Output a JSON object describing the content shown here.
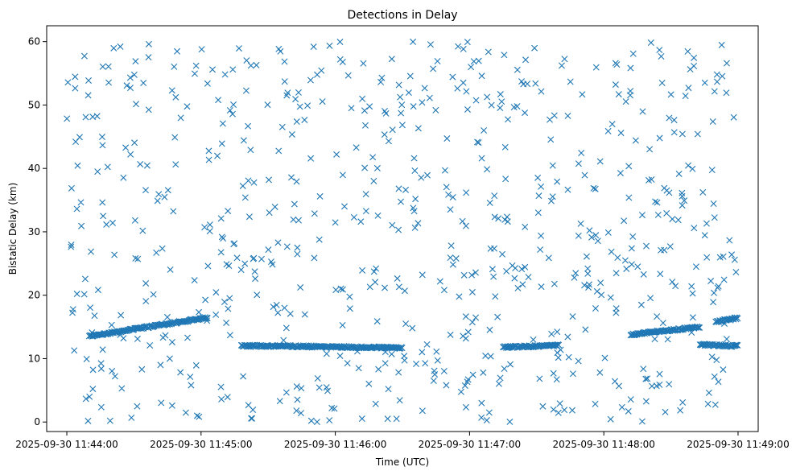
{
  "chart_data": {
    "type": "scatter",
    "title": "Detections in Delay",
    "xlabel": "Time (UTC)",
    "ylabel": "Bistatic Delay (km)",
    "marker": "x",
    "color": "#1f77b4",
    "x_start": "2025-09-30 11:44:00",
    "x_end": "2025-09-30 11:49:00",
    "xlim": [
      "2025-09-30 11:43:51",
      "2025-09-30 11:49:09"
    ],
    "ylim": [
      -1.5,
      62.5
    ],
    "x_ticks": [
      "2025-09-30 11:44:00",
      "2025-09-30 11:45:00",
      "2025-09-30 11:46:00",
      "2025-09-30 11:47:00",
      "2025-09-30 11:48:00",
      "2025-09-30 11:49:00"
    ],
    "y_ticks": [
      0,
      10,
      20,
      30,
      40,
      50,
      60
    ],
    "grid": false,
    "tracks": [
      {
        "t_start": "2025-09-30 11:44:10",
        "t_end": "2025-09-30 11:45:03",
        "y_start": 13.5,
        "y_end": 16.5
      },
      {
        "t_start": "2025-09-30 11:45:18",
        "t_end": "2025-09-30 11:45:30",
        "y_start": 12.0,
        "y_end": 12.0
      },
      {
        "t_start": "2025-09-30 11:45:30",
        "t_end": "2025-09-30 11:46:30",
        "y_start": 12.0,
        "y_end": 11.7
      },
      {
        "t_start": "2025-09-30 11:47:15",
        "t_end": "2025-09-30 11:47:40",
        "y_start": 11.8,
        "y_end": 12.1
      },
      {
        "t_start": "2025-09-30 11:48:12",
        "t_end": "2025-09-30 11:48:43",
        "y_start": 13.8,
        "y_end": 15.0
      },
      {
        "t_start": "2025-09-30 11:48:43",
        "t_end": "2025-09-30 11:49:00",
        "y_start": 12.2,
        "y_end": 12.0
      },
      {
        "t_start": "2025-09-30 11:48:50",
        "t_end": "2025-09-30 11:49:00",
        "y_start": 15.8,
        "y_end": 16.4
      }
    ],
    "clutter_count": 700
  }
}
